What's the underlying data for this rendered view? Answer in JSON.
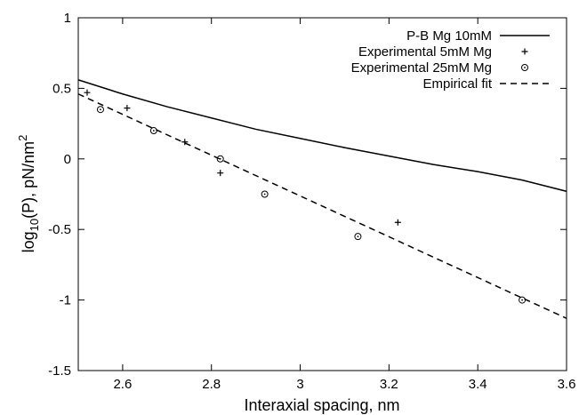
{
  "chart_data": {
    "type": "line",
    "title": "",
    "xlabel": "Interaxial spacing, nm",
    "ylabel": {
      "main": "log",
      "sub": "10",
      "mid": "(P), pN/nm",
      "sup": "2"
    },
    "xlim": [
      2.5,
      3.6
    ],
    "ylim": [
      -1.5,
      1
    ],
    "xticks": [
      2.6,
      2.8,
      3.0,
      3.2,
      3.4,
      3.6
    ],
    "xtick_labels": [
      "2.6",
      "2.8",
      "3",
      "3.2",
      "3.4",
      "3.6"
    ],
    "yticks": [
      -1.5,
      -1,
      -0.5,
      0,
      0.5,
      1
    ],
    "ytick_labels": [
      "-1.5",
      "-1",
      "-0.5",
      "0",
      "0.5",
      "1"
    ],
    "grid": false,
    "legend_position": "top-right",
    "series": [
      {
        "name": "P-B Mg 10mM",
        "style": "solid-line",
        "color": "#000000",
        "x": [
          2.5,
          2.6,
          2.7,
          2.8,
          2.9,
          3.0,
          3.1,
          3.2,
          3.3,
          3.4,
          3.5,
          3.6
        ],
        "y": [
          0.56,
          0.46,
          0.37,
          0.29,
          0.21,
          0.145,
          0.08,
          0.02,
          -0.04,
          -0.09,
          -0.15,
          -0.23
        ]
      },
      {
        "name": "Experimental 5mM Mg",
        "style": "plus-marker",
        "color": "#000000",
        "x": [
          2.52,
          2.61,
          2.74,
          2.82,
          3.22
        ],
        "y": [
          0.47,
          0.36,
          0.12,
          -0.1,
          -0.45
        ]
      },
      {
        "name": "Experimental 25mM Mg",
        "style": "circle-marker",
        "color": "#000000",
        "x": [
          2.55,
          2.67,
          2.82,
          2.92,
          3.13,
          3.5
        ],
        "y": [
          0.35,
          0.2,
          0.0,
          -0.25,
          -0.55,
          -1.0
        ]
      },
      {
        "name": "Empirical fit",
        "style": "dashed-line",
        "color": "#000000",
        "x": [
          2.5,
          3.6
        ],
        "y": [
          0.46,
          -1.13
        ]
      }
    ]
  }
}
